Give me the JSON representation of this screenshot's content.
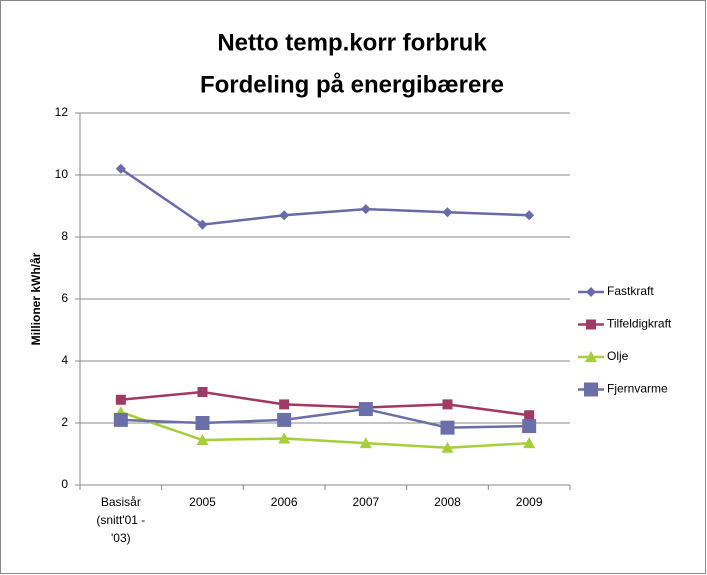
{
  "chart_data": {
    "type": "line",
    "title": [
      "Netto temp.korr forbruk",
      "Fordeling på energibærere"
    ],
    "y_label": "Millioner kWh/år",
    "categories": [
      "Basisår (snitt'01 - '03)",
      "2005",
      "2006",
      "2007",
      "2008",
      "2009"
    ],
    "series": [
      {
        "name": "Fastkraft",
        "color": "#6a6aa8",
        "marker": "diamond",
        "values": [
          10.2,
          8.4,
          8.7,
          8.9,
          8.8,
          8.7
        ]
      },
      {
        "name": "Tilfeldigkraft",
        "color": "#9e3a64",
        "marker": "square",
        "values": [
          2.75,
          3.0,
          2.6,
          2.5,
          2.6,
          2.25
        ]
      },
      {
        "name": "Olje",
        "color": "#a6cf3a",
        "marker": "triangle",
        "values": [
          2.35,
          1.45,
          1.5,
          1.35,
          1.2,
          1.35
        ]
      },
      {
        "name": "Fjernvarme",
        "color": "#6b6fa8",
        "marker": "big-square",
        "values": [
          2.1,
          2.0,
          2.1,
          2.45,
          1.85,
          1.9
        ]
      }
    ],
    "ylim": [
      0,
      12
    ],
    "yticks": [
      0,
      2,
      4,
      6,
      8,
      10,
      12
    ],
    "grid": true,
    "legend": "right"
  }
}
